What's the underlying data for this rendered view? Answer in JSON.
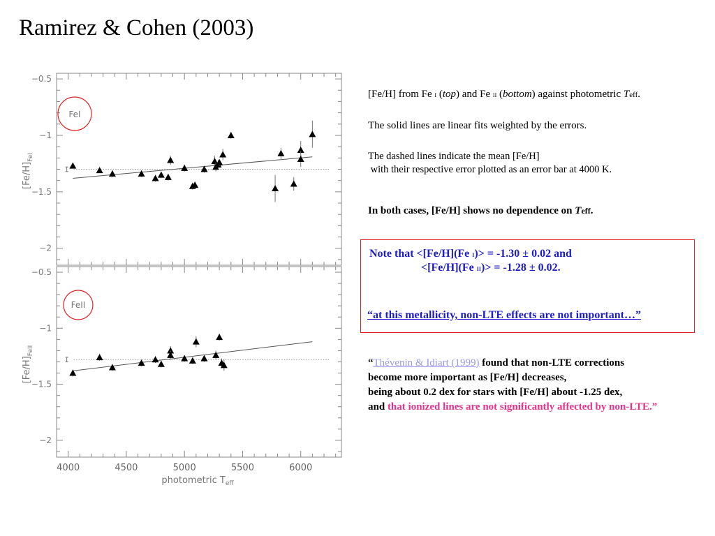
{
  "slide": {
    "title": "Ramirez & Cohen (2003)"
  },
  "notes": {
    "line1": {
      "a": "[Fe/H] from Fe ",
      "b": "i",
      "c": " (",
      "d": "top",
      "e": ") and Fe ",
      "f": "ii",
      "g": " (",
      "h": "bottom",
      "i": ") against photometric ",
      "j": "T",
      "k": "eff",
      "l": "."
    },
    "line2": "The solid lines are linear fits weighted by the errors.",
    "line3": "The dashed lines indicate the mean [Fe/H]",
    "line4": " with their respective error plotted as an error bar at 4000 K.",
    "line5": {
      "a": "In both cases, [Fe/H] shows no dependence on ",
      "b": "T",
      "c": "eff",
      "d": "."
    }
  },
  "callout": {
    "line1": {
      "a": "Note that <[Fe/H](Fe ",
      "b": "i",
      "c": ")> = -1.30 ± 0.02 and"
    },
    "line2": {
      "a": "<[Fe/H](Fe ",
      "b": "ii",
      "c": ")> = -1.28 ± 0.02."
    },
    "line3": "“at this metallicity, non-LTE effects are not important…”"
  },
  "quote": {
    "open": "“",
    "link": "Thévenin & Idiart (1999)",
    "line1_rest": " found that non-LTE corrections",
    "line2": "become more important as [Fe/H] decreases,",
    "line3": "being about 0.2 dex for stars with [Fe/H] about -1.25 dex,",
    "line4_a": "and ",
    "line4_b": "that ionized lines are not significantly affected by non-LTE.”"
  },
  "colors": {
    "callout_border": "#e02020",
    "callout_text": "#1c1cc8",
    "link": "#9a9ae8",
    "highlight": "#e8308a",
    "circle": "#e02020",
    "axis": "#888888",
    "marker": "#000000"
  },
  "chart_data": [
    {
      "type": "scatter",
      "panel_label": "FeI",
      "ylabel": "[Fe/H]FeI",
      "xlabel": "",
      "xlim": [
        3900,
        6350
      ],
      "ylim": [
        -2.15,
        -0.45
      ],
      "y_inverted": true,
      "yticks": [
        -0.5,
        -1,
        -1.5,
        -2
      ],
      "ytick_labels": [
        "−0.5",
        "−1",
        "−1.5",
        "−2"
      ],
      "points": [
        {
          "x": 4040,
          "y": -1.27,
          "err": 0.02
        },
        {
          "x": 4270,
          "y": -1.31,
          "err": 0.02
        },
        {
          "x": 4380,
          "y": -1.34,
          "err": 0.03
        },
        {
          "x": 4630,
          "y": -1.34,
          "err": 0.03
        },
        {
          "x": 4750,
          "y": -1.38,
          "err": 0.03
        },
        {
          "x": 4800,
          "y": -1.35,
          "err": 0.03
        },
        {
          "x": 4860,
          "y": -1.37,
          "err": 0.03
        },
        {
          "x": 4880,
          "y": -1.22,
          "err": 0.04
        },
        {
          "x": 5000,
          "y": -1.29,
          "err": 0.03
        },
        {
          "x": 5070,
          "y": -1.45,
          "err": 0.03
        },
        {
          "x": 5090,
          "y": -1.44,
          "err": 0.03
        },
        {
          "x": 5170,
          "y": -1.3,
          "err": 0.03
        },
        {
          "x": 5260,
          "y": -1.23,
          "err": 0.05
        },
        {
          "x": 5270,
          "y": -1.28,
          "err": 0.04
        },
        {
          "x": 5290,
          "y": -1.26,
          "err": 0.04
        },
        {
          "x": 5300,
          "y": -1.24,
          "err": 0.03
        },
        {
          "x": 5330,
          "y": -1.17,
          "err": 0.05
        },
        {
          "x": 5400,
          "y": -1.0,
          "err": 0.03
        },
        {
          "x": 5780,
          "y": -1.47,
          "err": 0.12
        },
        {
          "x": 5830,
          "y": -1.16,
          "err": 0.05
        },
        {
          "x": 5940,
          "y": -1.43,
          "err": 0.06
        },
        {
          "x": 6000,
          "y": -1.13,
          "err": 0.08
        },
        {
          "x": 6000,
          "y": -1.21,
          "err": 0.07
        },
        {
          "x": 6100,
          "y": -0.99,
          "err": 0.12
        }
      ],
      "fit_line": {
        "x": [
          4040,
          6100
        ],
        "y": [
          -1.38,
          -1.19
        ]
      },
      "mean": -1.3,
      "mean_err": 0.02,
      "mean_marker_x": 4000
    },
    {
      "type": "scatter",
      "panel_label": "FeII",
      "ylabel": "[Fe/H]FeII",
      "xlabel": "photometric Teff",
      "xlim": [
        3900,
        6350
      ],
      "ylim": [
        -2.15,
        -0.45
      ],
      "y_inverted": true,
      "yticks": [
        -0.5,
        -1,
        -1.5,
        -2
      ],
      "ytick_labels": [
        "−0.5",
        "−1",
        "−1.5",
        "−2"
      ],
      "xticks": [
        4000,
        4500,
        5000,
        5500,
        6000
      ],
      "xtick_labels": [
        "4000",
        "4500",
        "5000",
        "5500",
        "6000"
      ],
      "points": [
        {
          "x": 4040,
          "y": -1.4,
          "err": 0.03
        },
        {
          "x": 4270,
          "y": -1.26,
          "err": 0.03
        },
        {
          "x": 4380,
          "y": -1.35,
          "err": 0.03
        },
        {
          "x": 4630,
          "y": -1.31,
          "err": 0.03
        },
        {
          "x": 4750,
          "y": -1.28,
          "err": 0.03
        },
        {
          "x": 4800,
          "y": -1.32,
          "err": 0.03
        },
        {
          "x": 4880,
          "y": -1.2,
          "err": 0.04
        },
        {
          "x": 4880,
          "y": -1.24,
          "err": 0.04
        },
        {
          "x": 5000,
          "y": -1.27,
          "err": 0.03
        },
        {
          "x": 5070,
          "y": -1.29,
          "err": 0.03
        },
        {
          "x": 5100,
          "y": -1.12,
          "err": 0.05
        },
        {
          "x": 5170,
          "y": -1.27,
          "err": 0.03
        },
        {
          "x": 5270,
          "y": -1.24,
          "err": 0.04
        },
        {
          "x": 5300,
          "y": -1.08,
          "err": 0.03
        },
        {
          "x": 5320,
          "y": -1.31,
          "err": 0.04
        },
        {
          "x": 5340,
          "y": -1.33,
          "err": 0.05
        }
      ],
      "fit_line": {
        "x": [
          4040,
          6100
        ],
        "y": [
          -1.38,
          -1.12
        ]
      },
      "mean": -1.28,
      "mean_err": 0.02,
      "mean_marker_x": 4000
    }
  ]
}
